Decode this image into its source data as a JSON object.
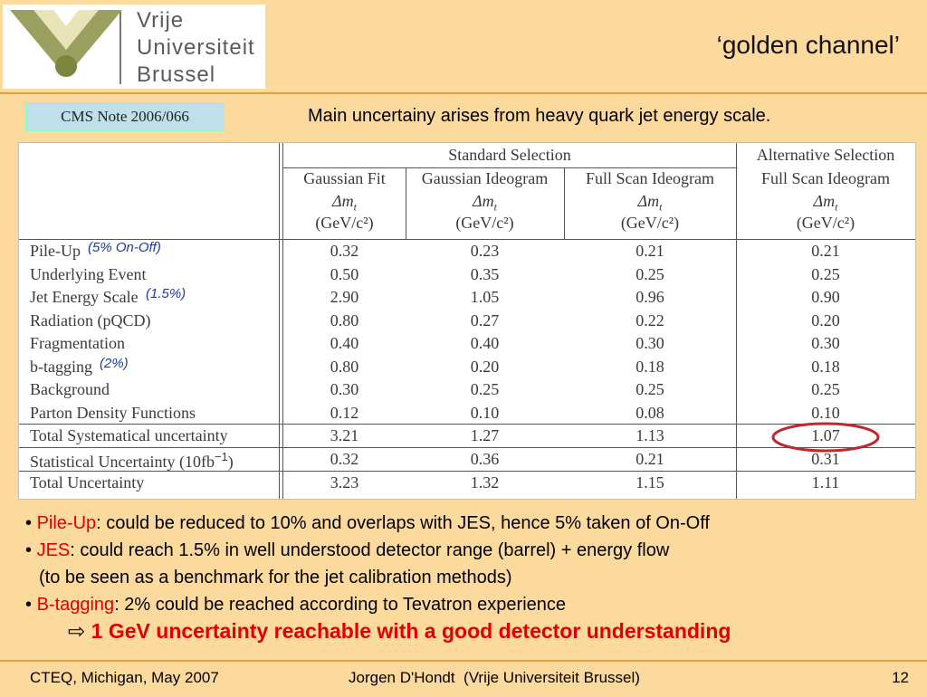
{
  "header": {
    "logo": {
      "line1": "Vrije",
      "line2": "Universiteit",
      "line3": "Brussel"
    },
    "title": "‘golden channel’"
  },
  "note": "CMS Note 2006/066",
  "subtitle": "Main uncertainy arises from heavy quark jet energy scale.",
  "table": {
    "groups": [
      "Standard Selection",
      "Alternative Selection"
    ],
    "columns": [
      {
        "method": "Gaussian Fit",
        "quantity": "Δm",
        "subscript": "t",
        "unit": "(GeV/c²)"
      },
      {
        "method": "Gaussian Ideogram",
        "quantity": "Δm",
        "subscript": "t",
        "unit": "(GeV/c²)"
      },
      {
        "method": "Full Scan Ideogram",
        "quantity": "Δm",
        "subscript": "t",
        "unit": "(GeV/c²)"
      },
      {
        "method": "Full Scan Ideogram",
        "quantity": "Δm",
        "subscript": "t",
        "unit": "(GeV/c²)"
      }
    ],
    "rows": [
      {
        "label": "Pile-Up",
        "annotation": "(5% On-Off)",
        "cells": [
          "0.32",
          "0.23",
          "0.21",
          "0.21"
        ]
      },
      {
        "label": "Underlying Event",
        "cells": [
          "0.50",
          "0.35",
          "0.25",
          "0.25"
        ]
      },
      {
        "label": "Jet Energy Scale",
        "annotation": "(1.5%)",
        "cells": [
          "2.90",
          "1.05",
          "0.96",
          "0.90"
        ]
      },
      {
        "label": "Radiation (pQCD)",
        "cells": [
          "0.80",
          "0.27",
          "0.22",
          "0.20"
        ]
      },
      {
        "label": "Fragmentation",
        "cells": [
          "0.40",
          "0.40",
          "0.30",
          "0.30"
        ]
      },
      {
        "label": "b-tagging",
        "annotation": "(2%)",
        "cells": [
          "0.80",
          "0.20",
          "0.18",
          "0.18"
        ]
      },
      {
        "label": "Background",
        "cells": [
          "0.30",
          "0.25",
          "0.25",
          "0.25"
        ]
      },
      {
        "label": "Parton Density Functions",
        "cells": [
          "0.12",
          "0.10",
          "0.08",
          "0.10"
        ]
      },
      {
        "label": "Total Systematical uncertainty",
        "cells": [
          "3.21",
          "1.27",
          "1.13",
          "1.07"
        ]
      },
      {
        "label": "Statistical Uncertainty (10fb",
        "sup": "−1",
        "tail": ")",
        "cells": [
          "0.32",
          "0.36",
          "0.21",
          "0.31"
        ]
      },
      {
        "label": "Total Uncertainty",
        "cells": [
          "3.23",
          "1.32",
          "1.15",
          "1.11"
        ]
      }
    ]
  },
  "bullets": [
    {
      "term": "Pile-Up",
      "text": ": could be reduced to 10% and overlaps with JES, hence 5% taken of On-Off"
    },
    {
      "term": "JES",
      "text": ": could reach 1.5% in well understood detector range (barrel) + energy flow",
      "continuation": "(to be seen as a benchmark for the jet calibration methods)"
    },
    {
      "term": "B-tagging",
      "text": ": 2% could be reached according to Tevatron experience"
    }
  ],
  "conclusion": "1 GeV uncertainty reachable with a good detector understanding",
  "footer": {
    "left": "CTEQ, Michigan, May 2007",
    "center": "Jorgen D'Hondt  (Vrije Universiteit Brussel)",
    "page": "12"
  }
}
